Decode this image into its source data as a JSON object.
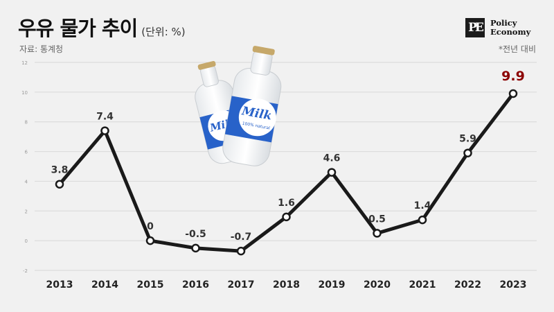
{
  "header": {
    "title": "우유 물가 추이",
    "unit": "(단위: %)",
    "source": "자료: 통계청",
    "note": "*전년 대비",
    "logo_mark": "PE",
    "logo_line1": "Policy",
    "logo_line2": "Economy"
  },
  "colors": {
    "line": "#1a1a1a",
    "highlight_label": "#8b0000",
    "grid": "#d8d8d8"
  },
  "illustration": {
    "icon": "milk-bottles-image",
    "bottle_text": "Milk",
    "bottle_subtext": "100% natural"
  },
  "chart_data": {
    "type": "line",
    "title": "우유 물가 추이",
    "xlabel": "",
    "ylabel": "",
    "categories": [
      "2013",
      "2014",
      "2015",
      "2016",
      "2017",
      "2018",
      "2019",
      "2020",
      "2021",
      "2022",
      "2023"
    ],
    "series": [
      {
        "values": [
          3.8,
          7.4,
          0,
          -0.5,
          -0.7,
          1.6,
          4.6,
          0.5,
          1.4,
          5.9,
          9.9
        ]
      }
    ],
    "data_labels": [
      "3.8",
      "7.4",
      "0",
      "-0.5",
      "-0.7",
      "1.6",
      "4.6",
      "0.5",
      "1.4",
      "5.9",
      "9.9"
    ],
    "y_ticks": [
      "12",
      "10",
      "8",
      "6",
      "4",
      "2",
      "0",
      "-2"
    ],
    "ylim": [
      -2,
      12
    ],
    "grid": true,
    "highlight_last": true
  }
}
